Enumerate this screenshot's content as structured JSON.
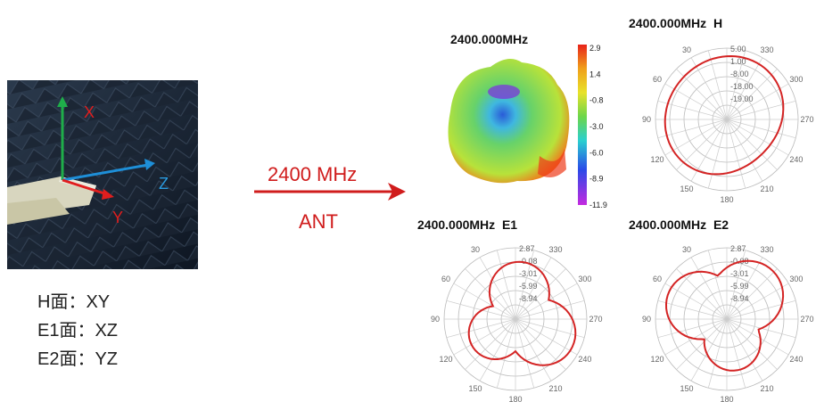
{
  "photo": {
    "axes": {
      "x": "X",
      "y": "Y",
      "z": "Z"
    }
  },
  "planes": [
    {
      "label": "H面：XY"
    },
    {
      "label": "E1面：XZ"
    },
    {
      "label": "E2面：YZ"
    }
  ],
  "arrow": {
    "label": "2400 MHz",
    "sublabel": "ANT",
    "color": "#d01c1c"
  },
  "pattern3d": {
    "title": "2400.000MHz"
  },
  "colorbar": {
    "ticks": [
      "2.9",
      "1.4",
      "-0.8",
      "-3.0",
      "-6.0",
      "-8.9",
      "-11.9"
    ]
  },
  "polar_plots": {
    "h": {
      "title": "2400.000MHz  H",
      "rings": [
        "5.00",
        "1.00",
        "-8.00",
        "-18.00",
        "-19.00"
      ]
    },
    "e1": {
      "title": "2400.000MHz  E1",
      "rings": [
        "2.87",
        "-0.08",
        "-3.01",
        "-5.99",
        "-8.94"
      ]
    },
    "e2": {
      "title": "2400.000MHz  E2",
      "rings": [
        "2.87",
        "-0.08",
        "-3.01",
        "-5.99",
        "-8.94"
      ]
    },
    "angle_labels": [
      "30",
      "60",
      "90",
      "120",
      "150",
      "180",
      "210",
      "240",
      "270",
      "300",
      "330"
    ],
    "trace_color": "#d42424"
  }
}
